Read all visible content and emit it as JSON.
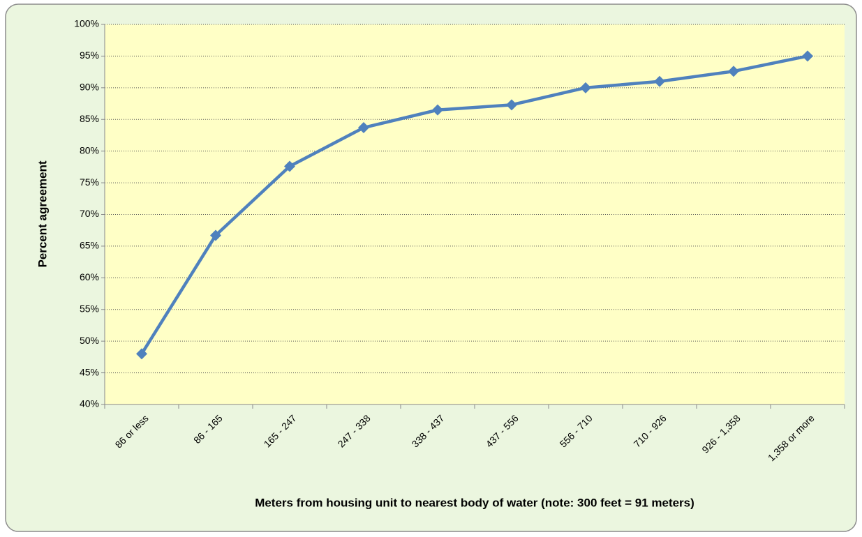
{
  "chart_data": {
    "type": "line",
    "x_label": "Meters  from housing unit to nearest body of water (note: 300 feet = 91 meters)",
    "y_label": "Percent agreement",
    "categories": [
      "86 or less",
      "86 - 165",
      "165 - 247",
      "247 - 338",
      "338 - 437",
      "437 - 556",
      "556 - 710",
      "710 - 926",
      "926 - 1,358",
      "1,358 or more"
    ],
    "series": [
      {
        "name": "Percent agreement",
        "color": "#4f81bd",
        "values": [
          48,
          66.7,
          77.6,
          83.7,
          86.5,
          87.3,
          90,
          91,
          92.6,
          95
        ]
      }
    ],
    "ylim": [
      40,
      100
    ],
    "yticks": [
      {
        "value": 40,
        "label": "40%"
      },
      {
        "value": 45,
        "label": "45%"
      },
      {
        "value": 50,
        "label": "50%"
      },
      {
        "value": 55,
        "label": "55%"
      },
      {
        "value": 60,
        "label": "60%"
      },
      {
        "value": 65,
        "label": "65%"
      },
      {
        "value": 70,
        "label": "70%"
      },
      {
        "value": 75,
        "label": "75%"
      },
      {
        "value": 80,
        "label": "80%"
      },
      {
        "value": 85,
        "label": "85%"
      },
      {
        "value": 90,
        "label": "90%"
      },
      {
        "value": 95,
        "label": "95%"
      },
      {
        "value": 100,
        "label": "100%"
      }
    ],
    "grid": true
  }
}
